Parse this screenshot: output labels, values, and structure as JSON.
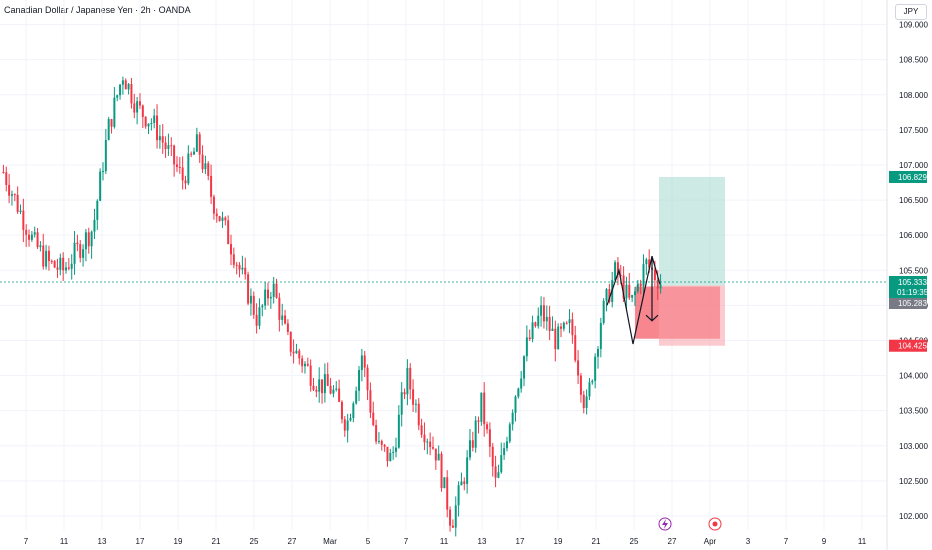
{
  "header": {
    "title": "Canadian Dollar / Japanese Yen · 2h · OANDA",
    "currency": "JPY"
  },
  "chart_data": {
    "type": "candlestick",
    "symbol": "CADJPY",
    "interval": "2h",
    "broker": "OANDA",
    "ylim": [
      101.8,
      109.35
    ],
    "y_ticks": [
      "109.000",
      "108.500",
      "108.000",
      "107.500",
      "107.000",
      "106.500",
      "106.000",
      "105.500",
      "105.000",
      "104.500",
      "104.000",
      "103.500",
      "103.000",
      "102.500",
      "102.000"
    ],
    "x_ticks": [
      "7",
      "11",
      "13",
      "17",
      "19",
      "21",
      "25",
      "27",
      "Mar",
      "5",
      "7",
      "11",
      "13",
      "17",
      "19",
      "21",
      "25",
      "27",
      "Apr",
      "3",
      "7",
      "9",
      "11"
    ],
    "price_path": [
      106.9,
      106.4,
      105.9,
      105.6,
      105.5,
      105.8,
      106.1,
      107.5,
      108.3,
      107.8,
      107.6,
      107.2,
      106.8,
      107.3,
      106.5,
      106.0,
      105.4,
      104.8,
      105.3,
      104.5,
      104.2,
      103.9,
      103.8,
      103.3,
      104.3,
      103.0,
      102.8,
      104.0,
      103.3,
      102.9,
      101.9,
      102.7,
      103.6,
      102.4,
      103.5,
      104.4,
      104.9,
      104.5,
      104.7,
      103.5,
      104.8,
      105.5,
      105.0,
      105.6,
      105.33
    ],
    "current_price": "105.333",
    "countdown": "01:19:35",
    "second_price": "105.283",
    "position": {
      "direction": "short",
      "entry": 105.283,
      "take_profit_label": "106.829",
      "take_profit": 106.829,
      "stop_label": "104.425",
      "stop": 104.425
    },
    "colors": {
      "up": "#089981",
      "down": "#f23645",
      "profit_zone": "#b2dfd5",
      "loss_zone": "#f7a1a8",
      "tp_tag": "#089981",
      "sl_tag": "#f23645",
      "price_tag": "#089981",
      "second_tag": "#787b86"
    },
    "event_icons": [
      "lightning-event-icon",
      "target-event-icon"
    ]
  }
}
